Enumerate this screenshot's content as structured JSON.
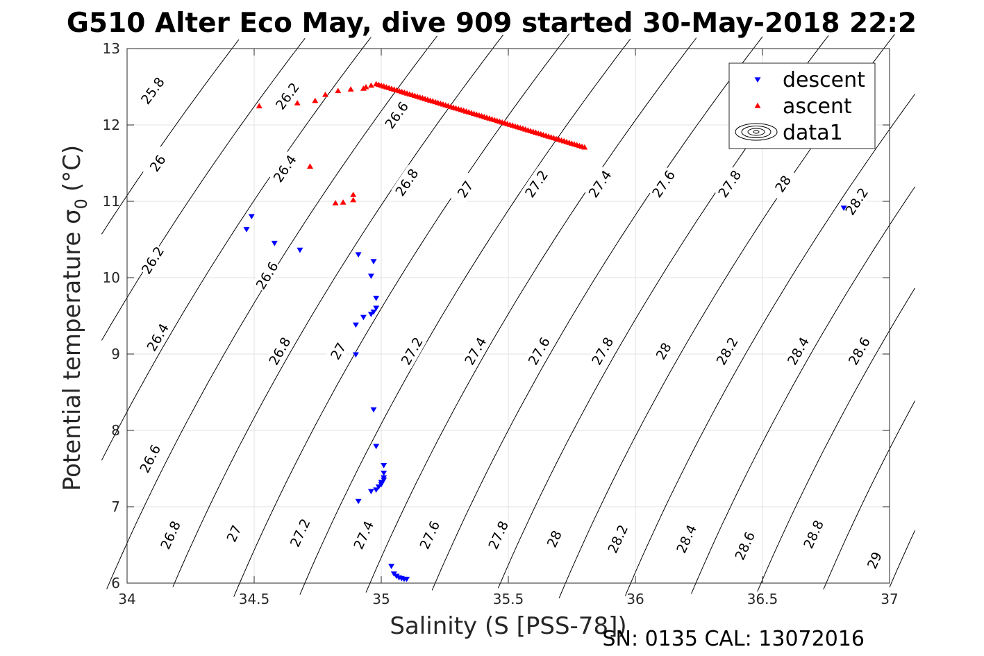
{
  "chart_data": {
    "type": "scatter",
    "title": "G510 Alter Eco May, dive 909 started 30-May-2018 22:2",
    "xlabel": "Salinity (S [PSS-78])",
    "ylabel": "Potential temperature σ",
    "ylabel_subscript": "0",
    "ylabel_unit": "(°C)",
    "footer": "SN: 0135  CAL: 13072016",
    "xlim": [
      34,
      37
    ],
    "ylim": [
      6,
      13
    ],
    "xticks": [
      34,
      34.5,
      35,
      35.5,
      36,
      36.5,
      37
    ],
    "yticks": [
      6,
      7,
      8,
      9,
      10,
      11,
      12,
      13
    ],
    "xtick_labels": [
      "34",
      "34.5",
      "35",
      "35.5",
      "36",
      "36.5",
      "37"
    ],
    "ytick_labels": [
      "6",
      "7",
      "8",
      "9",
      "10",
      "11",
      "12",
      "13"
    ],
    "grid": true,
    "legend_position": "top-right",
    "legend": [
      {
        "label": "descent",
        "marker": "triangle-down",
        "color": "#0000ff"
      },
      {
        "label": "ascent",
        "marker": "triangle-up",
        "color": "#ff0000"
      },
      {
        "label": "data1",
        "marker": "contour",
        "color": "#000000"
      }
    ],
    "series": [
      {
        "name": "descent",
        "color": "#0000ff",
        "marker": "triangle-down",
        "points": [
          [
            34.49,
            10.8
          ],
          [
            34.47,
            10.63
          ],
          [
            34.58,
            10.45
          ],
          [
            34.68,
            10.36
          ],
          [
            34.91,
            10.3
          ],
          [
            34.97,
            10.21
          ],
          [
            34.96,
            10.02
          ],
          [
            34.98,
            9.73
          ],
          [
            34.98,
            9.6
          ],
          [
            34.97,
            9.55
          ],
          [
            34.96,
            9.52
          ],
          [
            34.93,
            9.48
          ],
          [
            34.9,
            9.38
          ],
          [
            34.9,
            8.99
          ],
          [
            34.97,
            8.27
          ],
          [
            34.98,
            7.79
          ],
          [
            35.01,
            7.54
          ],
          [
            35.01,
            7.44
          ],
          [
            35.01,
            7.38
          ],
          [
            35.01,
            7.35
          ],
          [
            35.0,
            7.32
          ],
          [
            35.0,
            7.29
          ],
          [
            34.99,
            7.26
          ],
          [
            34.98,
            7.22
          ],
          [
            34.96,
            7.2
          ],
          [
            34.91,
            7.07
          ],
          [
            35.04,
            6.22
          ],
          [
            35.05,
            6.12
          ],
          [
            35.06,
            6.09
          ],
          [
            35.07,
            6.07
          ],
          [
            35.08,
            6.06
          ],
          [
            35.09,
            6.05
          ],
          [
            35.1,
            6.05
          ],
          [
            36.82,
            10.91
          ]
        ]
      },
      {
        "name": "ascent",
        "color": "#ff0000",
        "marker": "triangle-up",
        "points": [
          [
            34.52,
            12.25
          ],
          [
            34.67,
            12.29
          ],
          [
            34.74,
            12.32
          ],
          [
            34.78,
            12.4
          ],
          [
            34.83,
            12.45
          ],
          [
            34.88,
            12.47
          ],
          [
            34.93,
            12.48
          ],
          [
            34.94,
            12.5
          ],
          [
            34.96,
            12.52
          ],
          [
            34.72,
            11.46
          ],
          [
            34.89,
            11.09
          ],
          [
            34.89,
            11.02
          ],
          [
            34.82,
            10.98
          ],
          [
            34.85,
            10.99
          ]
        ],
        "line_segment": {
          "start": [
            34.98,
            12.54
          ],
          "end": [
            35.8,
            11.71
          ],
          "n": 82
        }
      }
    ],
    "isopycnals": [
      {
        "label": "25.8",
        "label_at": [
          34.1,
          12.45
        ]
      },
      {
        "label": "26",
        "label_at": [
          34.12,
          11.5
        ]
      },
      {
        "label": "26.2",
        "label_at": [
          34.1,
          10.23
        ]
      },
      {
        "label": "26.2",
        "label_at": [
          34.63,
          12.38
        ]
      },
      {
        "label": "26.4",
        "label_at": [
          34.12,
          9.22
        ]
      },
      {
        "label": "26.4",
        "label_at": [
          34.62,
          11.43
        ]
      },
      {
        "label": "26.6",
        "label_at": [
          34.09,
          7.63
        ]
      },
      {
        "label": "26.6",
        "label_at": [
          34.55,
          10.03
        ]
      },
      {
        "label": "26.6",
        "label_at": [
          35.06,
          12.13
        ]
      },
      {
        "label": "26.8",
        "label_at": [
          34.17,
          6.63
        ]
      },
      {
        "label": "26.8",
        "label_at": [
          34.6,
          9.04
        ]
      },
      {
        "label": "26.8",
        "label_at": [
          35.1,
          11.25
        ]
      },
      {
        "label": "27",
        "label_at": [
          34.42,
          6.65
        ]
      },
      {
        "label": "27",
        "label_at": [
          34.83,
          9.04
        ]
      },
      {
        "label": "27",
        "label_at": [
          35.33,
          11.16
        ]
      },
      {
        "label": "27.2",
        "label_at": [
          34.68,
          6.66
        ]
      },
      {
        "label": "27.2",
        "label_at": [
          35.12,
          9.04
        ]
      },
      {
        "label": "27.2",
        "label_at": [
          35.61,
          11.23
        ]
      },
      {
        "label": "27.4",
        "label_at": [
          34.93,
          6.63
        ]
      },
      {
        "label": "27.4",
        "label_at": [
          35.37,
          9.04
        ]
      },
      {
        "label": "27.4",
        "label_at": [
          35.86,
          11.23
        ]
      },
      {
        "label": "27.6",
        "label_at": [
          35.19,
          6.63
        ]
      },
      {
        "label": "27.6",
        "label_at": [
          35.62,
          9.04
        ]
      },
      {
        "label": "27.6",
        "label_at": [
          36.11,
          11.23
        ]
      },
      {
        "label": "27.8",
        "label_at": [
          35.46,
          6.63
        ]
      },
      {
        "label": "27.8",
        "label_at": [
          35.87,
          9.04
        ]
      },
      {
        "label": "27.8",
        "label_at": [
          36.37,
          11.23
        ]
      },
      {
        "label": "28",
        "label_at": [
          35.68,
          6.58
        ]
      },
      {
        "label": "28",
        "label_at": [
          36.11,
          9.04
        ]
      },
      {
        "label": "28",
        "label_at": [
          36.58,
          11.23
        ]
      },
      {
        "label": "28.2",
        "label_at": [
          35.93,
          6.58
        ]
      },
      {
        "label": "28.2",
        "label_at": [
          36.36,
          9.04
        ]
      },
      {
        "label": "28.2",
        "label_at": [
          36.87,
          11.0
        ]
      },
      {
        "label": "28.4",
        "label_at": [
          36.2,
          6.58
        ]
      },
      {
        "label": "28.4",
        "label_at": [
          36.64,
          9.04
        ]
      },
      {
        "label": "28.6",
        "label_at": [
          36.43,
          6.49
        ]
      },
      {
        "label": "28.6",
        "label_at": [
          36.88,
          9.04
        ]
      },
      {
        "label": "28.8",
        "label_at": [
          36.7,
          6.64
        ]
      },
      {
        "label": "29",
        "label_at": [
          36.94,
          6.3
        ]
      }
    ]
  }
}
